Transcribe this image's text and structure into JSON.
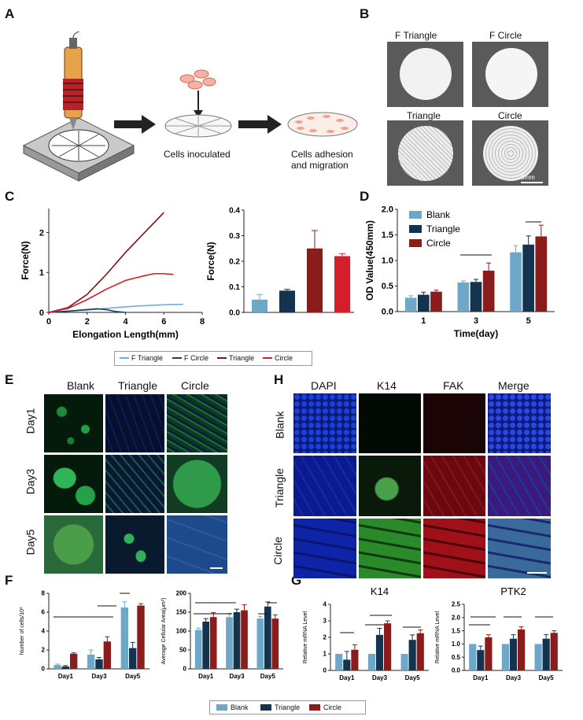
{
  "colors": {
    "blank": "#6fa7c9",
    "triangle": "#13334e",
    "circle": "#8a1c1c",
    "circle_line": "#d21f2a",
    "ftri_line": "#6ab0de",
    "fcirc_line": "#173f5f",
    "tri_line": "#7a1414"
  },
  "panels": {
    "A": "A",
    "B": "B",
    "C": "C",
    "D": "D",
    "E": "E",
    "F": "F",
    "G": "G",
    "H": "H"
  },
  "panelA": {
    "cells_inoculated": "Cells inoculated",
    "adhesion_1": "Cells adhesion",
    "adhesion_2": "and migration"
  },
  "panelB": {
    "labels": [
      "F Triangle",
      "F Circle",
      "Triangle",
      "Circle"
    ],
    "scale": "5mm"
  },
  "panelE": {
    "cols": [
      "Blank",
      "Triangle",
      "Circle"
    ],
    "rows": [
      "Day1",
      "Day3",
      "Day5"
    ]
  },
  "panelH": {
    "cols": [
      "DAPI",
      "K14",
      "FAK",
      "Merge"
    ],
    "rows": [
      "Blank",
      "Triangle",
      "Circle"
    ]
  },
  "legendC": [
    "F Triangle",
    "F Circle",
    "Triangle",
    "Circle"
  ],
  "legendFG": [
    "Blank",
    "Triangle",
    "Circle"
  ],
  "chart_data": [
    {
      "id": "C-line",
      "type": "line",
      "xlabel": "Elongation Length(mm)",
      "ylabel": "Force(N)",
      "xlim": [
        0,
        8
      ],
      "ylim": [
        0,
        2.6
      ],
      "xticks": [
        0,
        2,
        4,
        6,
        8
      ],
      "yticks": [
        0,
        1,
        2
      ],
      "series": [
        {
          "name": "F Triangle",
          "x": [
            0,
            1,
            2,
            3,
            4,
            5,
            6,
            7
          ],
          "y": [
            0,
            0.03,
            0.06,
            0.1,
            0.14,
            0.17,
            0.19,
            0.2
          ]
        },
        {
          "name": "F Circle",
          "x": [
            0,
            1,
            2,
            2.5,
            3,
            3.5,
            4
          ],
          "y": [
            0,
            0.03,
            0.07,
            0.09,
            0.07,
            0.02,
            0
          ]
        },
        {
          "name": "Triangle",
          "x": [
            0,
            1,
            2,
            3,
            4,
            5,
            6
          ],
          "y": [
            0,
            0.12,
            0.45,
            0.95,
            1.5,
            2.0,
            2.5
          ]
        },
        {
          "name": "Circle",
          "x": [
            0,
            1,
            2,
            3,
            4,
            5,
            5.5,
            6,
            6.5
          ],
          "y": [
            0,
            0.1,
            0.32,
            0.58,
            0.8,
            0.92,
            0.97,
            0.97,
            0.95
          ]
        }
      ]
    },
    {
      "id": "C-bar",
      "type": "bar",
      "ylabel": "Force(N)",
      "ylim": [
        0,
        0.4
      ],
      "yticks": [
        "0.0",
        "0.1",
        "0.2",
        "0.3",
        "0.4"
      ],
      "categories": [
        "F Triangle",
        "F Circle",
        "Triangle",
        "Circle"
      ],
      "values": [
        0.05,
        0.085,
        0.25,
        0.22
      ],
      "errors": [
        0.02,
        0.005,
        0.07,
        0.01
      ]
    },
    {
      "id": "D",
      "type": "bar",
      "xlabel": "Time(day)",
      "ylabel": "OD Value(450mm)",
      "ylim": [
        0,
        2.0
      ],
      "yticks": [
        "0.0",
        "0.5",
        "1.0",
        "1.5",
        "2.0"
      ],
      "categories": [
        "1",
        "3",
        "5"
      ],
      "series": [
        {
          "name": "Blank",
          "values": [
            0.27,
            0.57,
            1.16
          ],
          "errors": [
            0.04,
            0.03,
            0.13
          ]
        },
        {
          "name": "Triangle",
          "values": [
            0.33,
            0.58,
            1.31
          ],
          "errors": [
            0.05,
            0.05,
            0.17
          ]
        },
        {
          "name": "Circle",
          "values": [
            0.39,
            0.8,
            1.47
          ],
          "errors": [
            0.03,
            0.15,
            0.22
          ]
        }
      ]
    },
    {
      "id": "F1",
      "type": "bar",
      "ylabel": "Number of cells/10³",
      "ylim": [
        0,
        8
      ],
      "yticks": [
        "0",
        "2",
        "4",
        "6",
        "8"
      ],
      "categories": [
        "Day1",
        "Day3",
        "Day5"
      ],
      "series": [
        {
          "name": "Blank",
          "values": [
            0.4,
            1.5,
            6.5
          ],
          "errors": [
            0.1,
            0.5,
            0.6
          ]
        },
        {
          "name": "Triangle",
          "values": [
            0.25,
            1.0,
            2.2
          ],
          "errors": [
            0.1,
            0.2,
            0.6
          ]
        },
        {
          "name": "Circle",
          "values": [
            1.6,
            2.9,
            6.7
          ],
          "errors": [
            0.1,
            0.5,
            0.2
          ]
        }
      ]
    },
    {
      "id": "F2",
      "type": "bar",
      "ylabel": "Average Cellular Area(μm²)",
      "ylim": [
        0,
        200
      ],
      "yticks": [
        "0",
        "50",
        "100",
        "150",
        "200"
      ],
      "categories": [
        "Day1",
        "Day3",
        "Day5"
      ],
      "series": [
        {
          "name": "Blank",
          "values": [
            103,
            137,
            133
          ],
          "errors": [
            5,
            10,
            6
          ]
        },
        {
          "name": "Triangle",
          "values": [
            125,
            150,
            165
          ],
          "errors": [
            8,
            8,
            12
          ]
        },
        {
          "name": "Circle",
          "values": [
            137,
            155,
            133
          ],
          "errors": [
            12,
            15,
            10
          ]
        }
      ]
    },
    {
      "id": "G1",
      "type": "bar",
      "title": "K14",
      "ylabel": "Relative mRNA Level",
      "ylim": [
        0,
        4
      ],
      "yticks": [
        "0",
        "1",
        "2",
        "3",
        "4"
      ],
      "categories": [
        "Day1",
        "Day3",
        "Day5"
      ],
      "series": [
        {
          "name": "Blank",
          "values": [
            1.0,
            1.0,
            1.0
          ],
          "errors": [
            0,
            0,
            0
          ]
        },
        {
          "name": "Triangle",
          "values": [
            0.65,
            2.15,
            1.85
          ],
          "errors": [
            0.5,
            0.4,
            0.3
          ]
        },
        {
          "name": "Circle",
          "values": [
            1.25,
            2.85,
            2.25
          ],
          "errors": [
            0.3,
            0.15,
            0.2
          ]
        }
      ]
    },
    {
      "id": "G2",
      "type": "bar",
      "title": "PTK2",
      "ylabel": "Relative mRNA Level",
      "ylim": [
        0,
        2.5
      ],
      "yticks": [
        "0.0",
        "0.5",
        "1.0",
        "1.5",
        "2.0",
        "2.5"
      ],
      "categories": [
        "Day1",
        "Day3",
        "Day5"
      ],
      "series": [
        {
          "name": "Blank",
          "values": [
            1.0,
            1.0,
            1.0
          ],
          "errors": [
            0,
            0,
            0
          ]
        },
        {
          "name": "Triangle",
          "values": [
            0.77,
            1.2,
            1.2
          ],
          "errors": [
            0.15,
            0.15,
            0.15
          ]
        },
        {
          "name": "Circle",
          "values": [
            1.25,
            1.55,
            1.42
          ],
          "errors": [
            0.1,
            0.1,
            0.08
          ]
        }
      ]
    }
  ]
}
